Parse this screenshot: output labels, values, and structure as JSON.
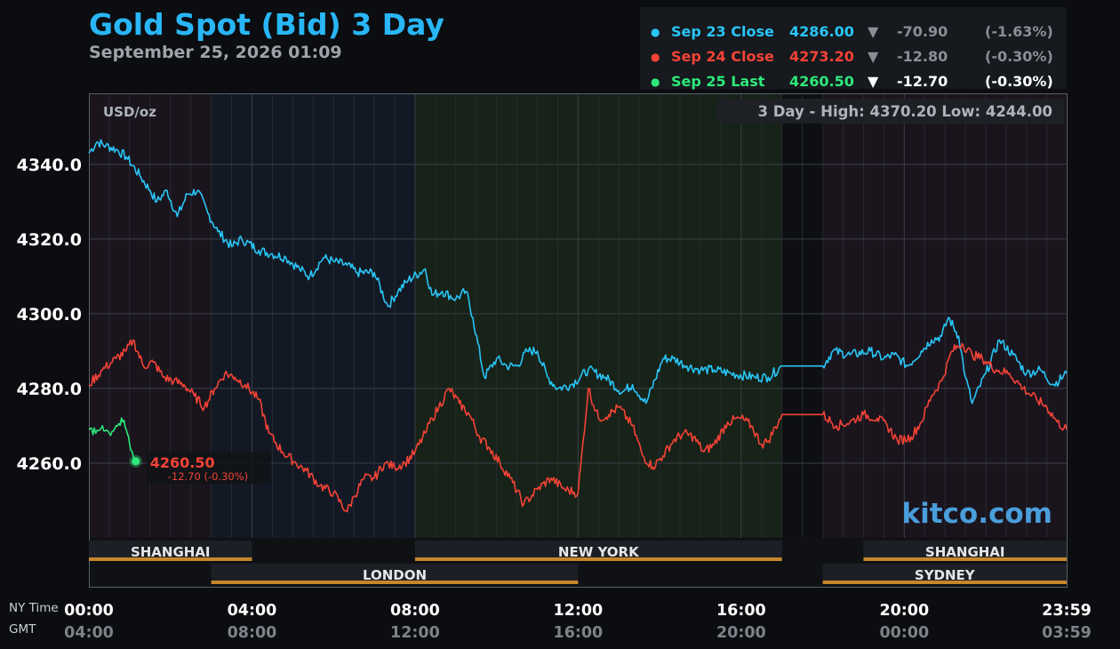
{
  "header": {
    "title": "Gold Spot (Bid) 3 Day",
    "timestamp": "September 25, 2026 01:09"
  },
  "legend": [
    {
      "label": "Sep 23 Close",
      "price": "4286.00",
      "arrow": "▼",
      "change": "-70.90",
      "pct": "(-1.63%)",
      "color": "#29c5f6",
      "dim": true
    },
    {
      "label": "Sep 24 Close",
      "price": "4273.20",
      "arrow": "▼",
      "change": "-12.80",
      "pct": "(-0.30%)",
      "color": "#f44336",
      "dim": true
    },
    {
      "label": "Sep 25 Last",
      "price": "4260.50",
      "arrow": "▼",
      "change": "-12.70",
      "pct": "(-0.30%)",
      "color": "#2ee87a",
      "dim": false
    }
  ],
  "chart_data": {
    "type": "line",
    "unit": "USD/oz",
    "range_label": "3 Day - High: 4370.20  Low: 4244.00",
    "ylim": [
      4240,
      4359
    ],
    "yticks": [
      4260.0,
      4280.0,
      4300.0,
      4320.0,
      4340.0
    ],
    "ytick_labels": [
      "4260.0",
      "4280.0",
      "4300.0",
      "4320.0",
      "4340.0"
    ],
    "xlim": [
      0,
      1439
    ],
    "x_unit": "minutes after 00:00 NY time",
    "xticks": [
      0,
      240,
      480,
      720,
      960,
      1200,
      1439
    ],
    "ny_labels": [
      "00:00",
      "04:00",
      "08:00",
      "12:00",
      "16:00",
      "20:00",
      "23:59"
    ],
    "gmt_labels": [
      "04:00",
      "08:00",
      "12:00",
      "16:00",
      "20:00",
      "00:00",
      "03:59"
    ],
    "ny_row_label": "NY Time",
    "gmt_row_label": "GMT",
    "watermark": "kitco.com",
    "current": {
      "value": "4260.50",
      "change": "-12.70 (-0.30%)"
    },
    "sessions": [
      {
        "name": "SHANGHAI",
        "start": 0,
        "end": 240,
        "row": 0
      },
      {
        "name": "NEW YORK",
        "start": 480,
        "end": 1020,
        "row": 0
      },
      {
        "name": "SHANGHAI",
        "start": 1140,
        "end": 1439,
        "row": 0
      },
      {
        "name": "LONDON",
        "start": 180,
        "end": 720,
        "row": 1
      },
      {
        "name": "SYDNEY",
        "start": 1080,
        "end": 1439,
        "row": 1
      }
    ],
    "series": [
      {
        "name": "Sep 23 Close",
        "color": "#29c5f6",
        "points": [
          [
            0,
            4343
          ],
          [
            12,
            4346
          ],
          [
            25,
            4345
          ],
          [
            40,
            4344
          ],
          [
            55,
            4342
          ],
          [
            75,
            4337
          ],
          [
            90,
            4333
          ],
          [
            100,
            4330
          ],
          [
            115,
            4333
          ],
          [
            130,
            4326
          ],
          [
            145,
            4332
          ],
          [
            160,
            4333
          ],
          [
            175,
            4327
          ],
          [
            190,
            4322
          ],
          [
            210,
            4318
          ],
          [
            225,
            4320
          ],
          [
            250,
            4317
          ],
          [
            270,
            4316
          ],
          [
            290,
            4315
          ],
          [
            310,
            4312
          ],
          [
            325,
            4310
          ],
          [
            345,
            4315
          ],
          [
            360,
            4314
          ],
          [
            380,
            4313
          ],
          [
            395,
            4311
          ],
          [
            420,
            4311
          ],
          [
            440,
            4302
          ],
          [
            455,
            4306
          ],
          [
            470,
            4309
          ],
          [
            495,
            4312
          ],
          [
            505,
            4305
          ],
          [
            520,
            4306
          ],
          [
            540,
            4304
          ],
          [
            555,
            4306
          ],
          [
            565,
            4299
          ],
          [
            582,
            4283
          ],
          [
            600,
            4288
          ],
          [
            615,
            4286
          ],
          [
            630,
            4286
          ],
          [
            645,
            4290
          ],
          [
            660,
            4290
          ],
          [
            675,
            4283
          ],
          [
            690,
            4280
          ],
          [
            710,
            4281
          ],
          [
            735,
            4285
          ],
          [
            760,
            4283
          ],
          [
            785,
            4279
          ],
          [
            800,
            4281
          ],
          [
            820,
            4276
          ],
          [
            845,
            4288
          ],
          [
            860,
            4288
          ],
          [
            880,
            4286
          ],
          [
            900,
            4285
          ],
          [
            920,
            4285
          ],
          [
            945,
            4284
          ],
          [
            980,
            4283
          ],
          [
            1000,
            4283
          ],
          [
            1020,
            4286
          ],
          [
            1080,
            4286
          ],
          [
            1095,
            4290
          ],
          [
            1120,
            4289
          ],
          [
            1150,
            4290
          ],
          [
            1170,
            4288
          ],
          [
            1185,
            4289
          ],
          [
            1205,
            4286
          ],
          [
            1225,
            4290
          ],
          [
            1240,
            4293
          ],
          [
            1255,
            4294
          ],
          [
            1265,
            4299
          ],
          [
            1280,
            4294
          ],
          [
            1290,
            4283
          ],
          [
            1300,
            4276
          ],
          [
            1320,
            4284
          ],
          [
            1340,
            4293
          ],
          [
            1360,
            4289
          ],
          [
            1380,
            4284
          ],
          [
            1400,
            4285
          ],
          [
            1420,
            4281
          ],
          [
            1439,
            4284
          ]
        ]
      },
      {
        "name": "Sep 24 Close",
        "color": "#f44336",
        "points": [
          [
            0,
            4281
          ],
          [
            20,
            4285
          ],
          [
            40,
            4288
          ],
          [
            55,
            4290
          ],
          [
            65,
            4293
          ],
          [
            80,
            4286
          ],
          [
            95,
            4287
          ],
          [
            110,
            4283
          ],
          [
            125,
            4282
          ],
          [
            140,
            4281
          ],
          [
            155,
            4278
          ],
          [
            170,
            4275
          ],
          [
            185,
            4280
          ],
          [
            200,
            4284
          ],
          [
            215,
            4283
          ],
          [
            230,
            4281
          ],
          [
            250,
            4277
          ],
          [
            265,
            4268
          ],
          [
            285,
            4263
          ],
          [
            305,
            4260
          ],
          [
            320,
            4258
          ],
          [
            340,
            4254
          ],
          [
            360,
            4252
          ],
          [
            380,
            4247
          ],
          [
            390,
            4251
          ],
          [
            405,
            4256
          ],
          [
            420,
            4256
          ],
          [
            435,
            4260
          ],
          [
            450,
            4259
          ],
          [
            465,
            4260
          ],
          [
            480,
            4263
          ],
          [
            495,
            4268
          ],
          [
            505,
            4272
          ],
          [
            515,
            4275
          ],
          [
            530,
            4280
          ],
          [
            545,
            4276
          ],
          [
            560,
            4273
          ],
          [
            575,
            4267
          ],
          [
            590,
            4264
          ],
          [
            605,
            4260
          ],
          [
            620,
            4256
          ],
          [
            640,
            4249
          ],
          [
            660,
            4253
          ],
          [
            680,
            4256
          ],
          [
            700,
            4253
          ],
          [
            720,
            4252
          ],
          [
            735,
            4280
          ],
          [
            750,
            4272
          ],
          [
            765,
            4273
          ],
          [
            780,
            4275
          ],
          [
            800,
            4270
          ],
          [
            815,
            4262
          ],
          [
            830,
            4259
          ],
          [
            845,
            4262
          ],
          [
            860,
            4266
          ],
          [
            875,
            4268
          ],
          [
            890,
            4267
          ],
          [
            905,
            4263
          ],
          [
            920,
            4265
          ],
          [
            940,
            4271
          ],
          [
            960,
            4272
          ],
          [
            975,
            4270
          ],
          [
            990,
            4265
          ],
          [
            1000,
            4266
          ],
          [
            1020,
            4273
          ],
          [
            1080,
            4273
          ],
          [
            1100,
            4270
          ],
          [
            1120,
            4271
          ],
          [
            1140,
            4273
          ],
          [
            1160,
            4272
          ],
          [
            1175,
            4270
          ],
          [
            1190,
            4266
          ],
          [
            1210,
            4267
          ],
          [
            1225,
            4271
          ],
          [
            1240,
            4278
          ],
          [
            1255,
            4282
          ],
          [
            1270,
            4290
          ],
          [
            1285,
            4292
          ],
          [
            1300,
            4289
          ],
          [
            1315,
            4288
          ],
          [
            1335,
            4285
          ],
          [
            1355,
            4284
          ],
          [
            1375,
            4280
          ],
          [
            1395,
            4277
          ],
          [
            1410,
            4275
          ],
          [
            1425,
            4271
          ],
          [
            1439,
            4269
          ]
        ]
      },
      {
        "name": "Sep 25 Last",
        "color": "#2ee87a",
        "points": [
          [
            0,
            4269
          ],
          [
            10,
            4268
          ],
          [
            20,
            4270
          ],
          [
            30,
            4268
          ],
          [
            40,
            4270
          ],
          [
            50,
            4271
          ],
          [
            55,
            4269
          ],
          [
            60,
            4265
          ],
          [
            65,
            4262
          ],
          [
            69,
            4260.5
          ]
        ]
      }
    ]
  }
}
